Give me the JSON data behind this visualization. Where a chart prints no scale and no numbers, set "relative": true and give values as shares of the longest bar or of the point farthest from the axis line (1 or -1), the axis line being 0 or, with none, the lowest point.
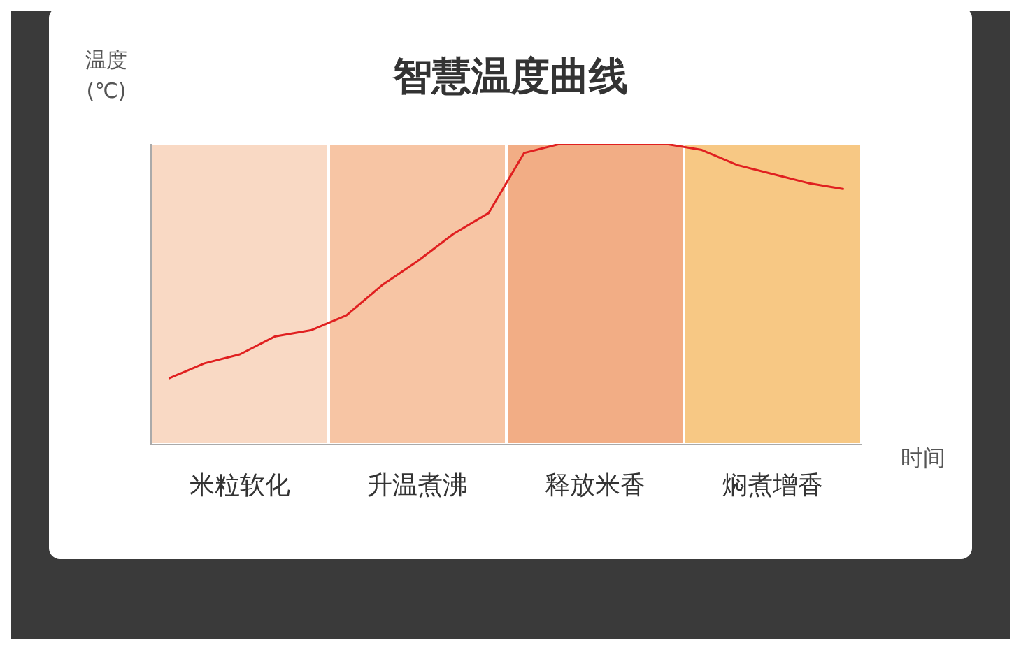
{
  "chart_data": {
    "type": "line",
    "title": "智慧温度曲线",
    "ylabel": "温度(℃)",
    "xlabel": "时间",
    "relative": true,
    "categories": [
      null,
      null,
      "米粒软化",
      null,
      null,
      null,
      null,
      "升温煮沸",
      null,
      null,
      null,
      null,
      "释放米香",
      null,
      null,
      null,
      null,
      "焖煮增香",
      null,
      null
    ],
    "series": [
      {
        "color": "#e02020",
        "values": [
          0.22,
          0.27,
          0.3,
          0.36,
          0.38,
          0.43,
          0.53,
          0.61,
          0.7,
          0.77,
          0.97,
          1,
          1,
          1,
          1,
          0.98,
          0.93,
          0.9,
          0.87,
          0.85
        ]
      }
    ],
    "marker": "none",
    "line_style": "solid"
  }
}
